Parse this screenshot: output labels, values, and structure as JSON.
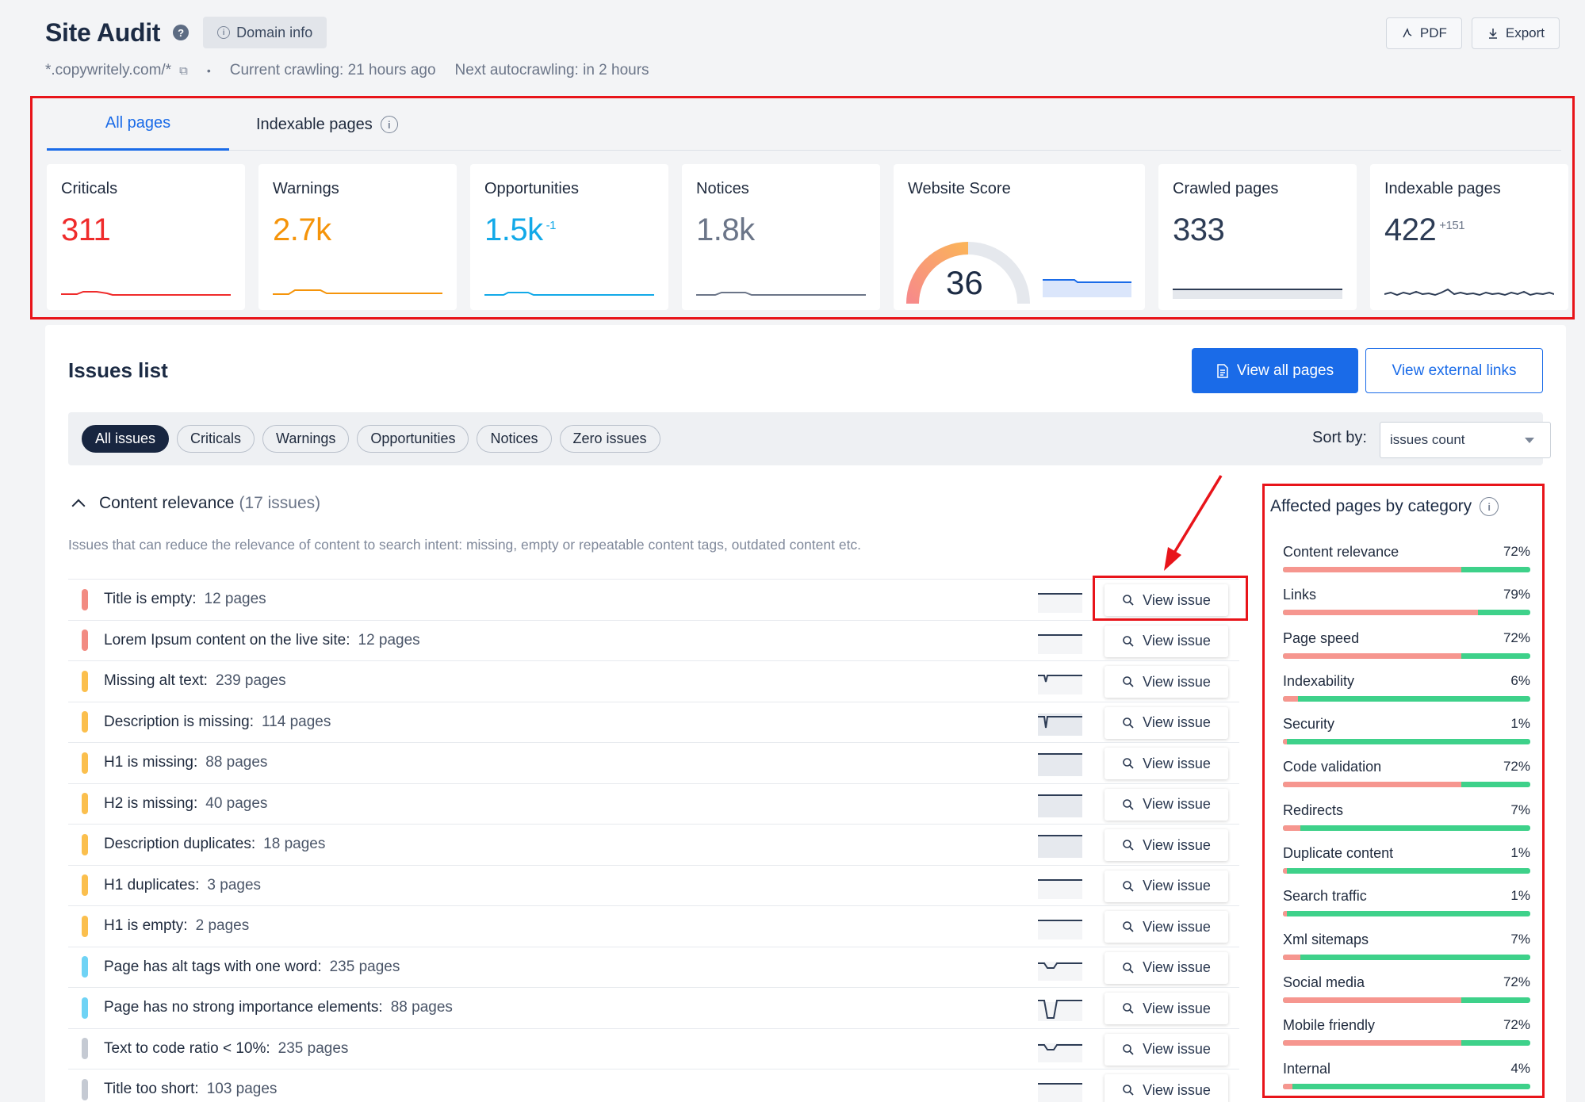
{
  "header": {
    "title": "Site Audit",
    "domain_info_label": "Domain info",
    "domain": "*.copywritely.com/*",
    "current_crawling": "Current crawling: 21 hours ago",
    "next_autocrawling": "Next autocrawling: in 2 hours",
    "pdf_label": "PDF",
    "export_label": "Export"
  },
  "tabs": [
    {
      "label": "All pages",
      "active": true
    },
    {
      "label": "Indexable pages",
      "active": false
    }
  ],
  "stats": [
    {
      "label": "Criticals",
      "value": "311",
      "delta": "",
      "color": "#ef2b2b"
    },
    {
      "label": "Warnings",
      "value": "2.7k",
      "delta": "",
      "color": "#f5940a"
    },
    {
      "label": "Opportunities",
      "value": "1.5k",
      "delta": "-1",
      "color": "#12a9e8"
    },
    {
      "label": "Notices",
      "value": "1.8k",
      "delta": "",
      "color": "#6b7588"
    },
    {
      "label": "Website Score",
      "value": "36",
      "delta": "",
      "color": "#1c2b44"
    },
    {
      "label": "Crawled pages",
      "value": "333",
      "delta": "",
      "color": "#2d3c55"
    },
    {
      "label": "Indexable pages",
      "value": "422",
      "delta": "+151",
      "color": "#2d3c55"
    }
  ],
  "issues": {
    "title": "Issues list",
    "view_all_pages": "View all pages",
    "view_external_links": "View external links",
    "filters": [
      "All issues",
      "Criticals",
      "Warnings",
      "Opportunities",
      "Notices",
      "Zero issues"
    ],
    "sort_label": "Sort by:",
    "sort_value": "issues count",
    "group": {
      "name": "Content relevance",
      "count": "(17 issues)",
      "description": "Issues that can reduce the relevance of content to search intent: missing, empty or repeatable content tags, outdated content etc."
    },
    "view_issue_label": "View issue",
    "rows": [
      {
        "name": "Title is empty:",
        "pages": "12 pages",
        "severity": "critical"
      },
      {
        "name": "Lorem Ipsum content on the live site:",
        "pages": "12 pages",
        "severity": "critical"
      },
      {
        "name": "Missing alt text:",
        "pages": "239 pages",
        "severity": "warning"
      },
      {
        "name": "Description is missing:",
        "pages": "114 pages",
        "severity": "warning"
      },
      {
        "name": "H1 is missing:",
        "pages": "88 pages",
        "severity": "warning"
      },
      {
        "name": "H2 is missing:",
        "pages": "40 pages",
        "severity": "warning"
      },
      {
        "name": "Description duplicates:",
        "pages": "18 pages",
        "severity": "warning"
      },
      {
        "name": "H1 duplicates:",
        "pages": "3 pages",
        "severity": "warning"
      },
      {
        "name": "H1 is empty:",
        "pages": "2 pages",
        "severity": "warning"
      },
      {
        "name": "Page has alt tags with one word:",
        "pages": "235 pages",
        "severity": "opportunity"
      },
      {
        "name": "Page has no strong importance elements:",
        "pages": "88 pages",
        "severity": "opportunity"
      },
      {
        "name": "Text to code ratio < 10%:",
        "pages": "235 pages",
        "severity": "notice"
      },
      {
        "name": "Title too short:",
        "pages": "103 pages",
        "severity": "notice"
      }
    ]
  },
  "affected": {
    "title": "Affected pages by category",
    "categories": [
      {
        "name": "Content relevance",
        "pct": "72%",
        "value": 0.72
      },
      {
        "name": "Links",
        "pct": "79%",
        "value": 0.79
      },
      {
        "name": "Page speed",
        "pct": "72%",
        "value": 0.72
      },
      {
        "name": "Indexability",
        "pct": "6%",
        "value": 0.06
      },
      {
        "name": "Security",
        "pct": "1%",
        "value": 0.01
      },
      {
        "name": "Code validation",
        "pct": "72%",
        "value": 0.72
      },
      {
        "name": "Redirects",
        "pct": "7%",
        "value": 0.07
      },
      {
        "name": "Duplicate content",
        "pct": "1%",
        "value": 0.01
      },
      {
        "name": "Search traffic",
        "pct": "1%",
        "value": 0.01
      },
      {
        "name": "Xml sitemaps",
        "pct": "7%",
        "value": 0.07
      },
      {
        "name": "Social media",
        "pct": "72%",
        "value": 0.72
      },
      {
        "name": "Mobile friendly",
        "pct": "72%",
        "value": 0.72
      },
      {
        "name": "Internal",
        "pct": "4%",
        "value": 0.04
      }
    ]
  },
  "colors": {
    "accent": "#1a6be8",
    "critical": "#f28b82",
    "warning": "#fbbf4d",
    "opportunity": "#6fd3f5",
    "notice": "#c5cad3",
    "highlight": "#e8141a"
  }
}
